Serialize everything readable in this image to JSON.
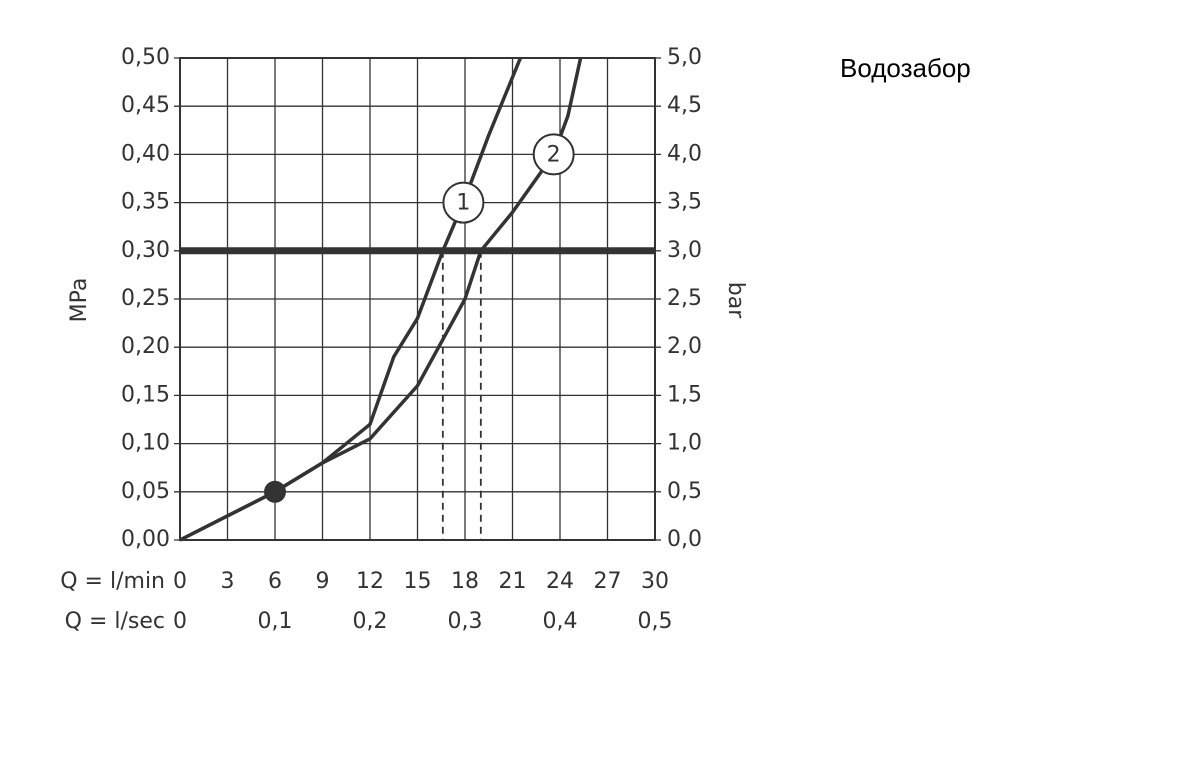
{
  "chart_data": {
    "type": "line",
    "title": "Водозабор",
    "ylabel": "MPa",
    "y2label": "bar",
    "xlabel": "Q = l/min",
    "x2label": "Q = l/sec",
    "xlim": [
      0,
      30
    ],
    "xticks": [
      0,
      3,
      6,
      9,
      12,
      15,
      18,
      21,
      24,
      27,
      30
    ],
    "x2lim": [
      0,
      0.5
    ],
    "x2ticks": [
      0,
      {
        "value": 0.1,
        "label": "0,1"
      },
      {
        "value": 0.2,
        "label": "0,2"
      },
      {
        "value": 0.3,
        "label": "0,3"
      },
      {
        "value": 0.4,
        "label": "0,4"
      },
      {
        "value": 0.5,
        "label": "0,5"
      }
    ],
    "ylim": [
      0,
      0.5
    ],
    "yticks": [
      {
        "value": 0,
        "label": "0,00"
      },
      {
        "value": 0.05,
        "label": "0,05"
      },
      {
        "value": 0.1,
        "label": "0,10"
      },
      {
        "value": 0.15,
        "label": "0,15"
      },
      {
        "value": 0.2,
        "label": "0,20"
      },
      {
        "value": 0.25,
        "label": "0,25"
      },
      {
        "value": 0.3,
        "label": "0,30"
      },
      {
        "value": 0.35,
        "label": "0,35"
      },
      {
        "value": 0.4,
        "label": "0,40"
      },
      {
        "value": 0.45,
        "label": "0,45"
      },
      {
        "value": 0.5,
        "label": "0,50"
      }
    ],
    "y2lim": [
      0,
      5
    ],
    "y2ticks": [
      {
        "value": 0,
        "label": "0,0"
      },
      {
        "value": 0.5,
        "label": "0,5"
      },
      {
        "value": 1,
        "label": "1,0"
      },
      {
        "value": 1.5,
        "label": "1,5"
      },
      {
        "value": 2,
        "label": "2,0"
      },
      {
        "value": 2.5,
        "label": "2,5"
      },
      {
        "value": 3,
        "label": "3,0"
      },
      {
        "value": 3.5,
        "label": "3,5"
      },
      {
        "value": 4,
        "label": "4,0"
      },
      {
        "value": 4.5,
        "label": "4,5"
      },
      {
        "value": 5,
        "label": "5,0"
      }
    ],
    "grid": true,
    "color": "#333333",
    "hline": 0.3,
    "vlines": [
      16.6,
      19
    ],
    "point": [
      6,
      0.05
    ],
    "series": [
      {
        "name": "1",
        "x": [
          0,
          6,
          9,
          12,
          13.5,
          15,
          16.6,
          17.9,
          19.5,
          21.5
        ],
        "values": [
          0,
          0.05,
          0.08,
          0.12,
          0.19,
          0.23,
          0.3,
          0.35,
          0.42,
          0.5
        ]
      },
      {
        "name": "2",
        "x": [
          0,
          6,
          9,
          12,
          15,
          17,
          18,
          19,
          21,
          23.6,
          24.5,
          25.3
        ],
        "values": [
          0,
          0.05,
          0.08,
          0.105,
          0.16,
          0.22,
          0.25,
          0.3,
          0.34,
          0.4,
          0.44,
          0.5
        ]
      }
    ]
  }
}
